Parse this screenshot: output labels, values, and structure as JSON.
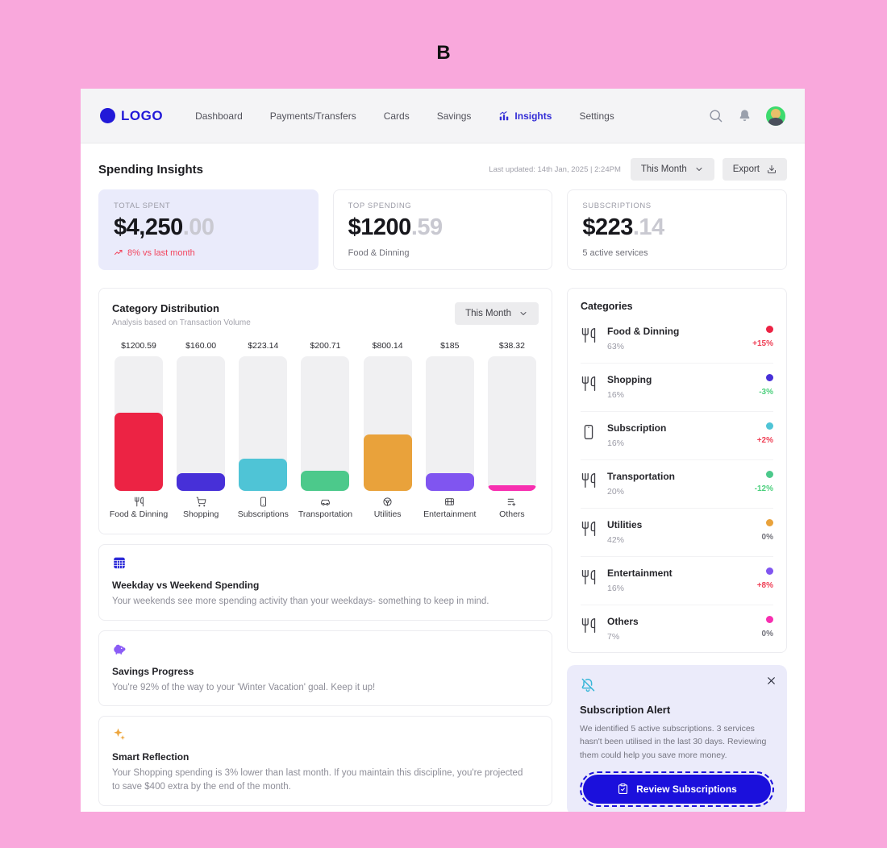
{
  "page": {
    "watermark": "B"
  },
  "navbar": {
    "logo_text": "LOGO",
    "items": [
      {
        "label": "Dashboard"
      },
      {
        "label": "Payments/Transfers"
      },
      {
        "label": "Cards"
      },
      {
        "label": "Savings"
      },
      {
        "label": "Insights",
        "active": true
      },
      {
        "label": "Settings"
      }
    ]
  },
  "header": {
    "title": "Spending Insights",
    "last_updated": "Last updated: 14th Jan, 2025 | 2:24PM",
    "period": "This Month",
    "export_label": "Export"
  },
  "stats": [
    {
      "label": "TOTAL SPENT",
      "amount": "$4,250",
      "cents": ".00",
      "note": "8% vs last month"
    },
    {
      "label": "TOP SPENDING",
      "amount": "$1200",
      "cents": ".59",
      "note": "Food & Dinning"
    },
    {
      "label": "SUBSCRIPTIONS",
      "amount": "$223",
      "cents": ".14",
      "note": "5 active services"
    }
  ],
  "chart": {
    "title": "Category Distribution",
    "subtitle": "Analysis based on Transaction Volume",
    "period": "This Month",
    "chart_data": {
      "type": "bar",
      "categories": [
        "Food & Dinning",
        "Shopping",
        "Subscriptions",
        "Transportation",
        "Utilities",
        "Entertainment",
        "Others"
      ],
      "values": [
        1200.59,
        160.0,
        223.14,
        200.71,
        800.14,
        185,
        38.32
      ],
      "value_labels": [
        "$1200.59",
        "$160.00",
        "$223.14",
        "$200.71",
        "$800.14",
        "$185",
        "$38.32"
      ],
      "colors": [
        "#ec2344",
        "#4730d8",
        "#4fc4d6",
        "#4cc98b",
        "#e9a23b",
        "#8055f0",
        "#f72fb0"
      ],
      "fill_percent": [
        58,
        13,
        24,
        15,
        42,
        13,
        4
      ]
    }
  },
  "insights": [
    {
      "icon": "calendar-icon",
      "title": "Weekday vs Weekend Spending",
      "text": "Your weekends see more spending activity than your weekdays- something to keep in mind."
    },
    {
      "icon": "piggy-bank-icon",
      "title": "Savings Progress",
      "text": "You're 92% of the way to your 'Winter Vacation' goal. Keep it up!"
    },
    {
      "icon": "sparkles-icon",
      "title": "Smart Reflection",
      "text": "Your Shopping spending is 3% lower than last month. If you maintain this discipline, you're projected to save $400 extra by the end of the month."
    }
  ],
  "categories_panel": {
    "title": "Categories",
    "items": [
      {
        "name": "Food & Dinning",
        "percent": "63%",
        "change": "+15%",
        "dot_color": "#ec2344",
        "change_color": "#ef4056",
        "icon": "utensils-icon"
      },
      {
        "name": "Shopping",
        "percent": "16%",
        "change": "-3%",
        "dot_color": "#4730d8",
        "change_color": "#4cd07d",
        "icon": "utensils-icon"
      },
      {
        "name": "Subscription",
        "percent": "16%",
        "change": "+2%",
        "dot_color": "#4fc4d6",
        "change_color": "#ef4056",
        "icon": "smartphone-icon"
      },
      {
        "name": "Transportation",
        "percent": "20%",
        "change": "-12%",
        "dot_color": "#4cc98b",
        "change_color": "#4cd07d",
        "icon": "utensils-icon"
      },
      {
        "name": "Utilities",
        "percent": "42%",
        "change": "0%",
        "dot_color": "#e9a23b",
        "change_color": "#71717a",
        "icon": "utensils-icon"
      },
      {
        "name": "Entertainment",
        "percent": "16%",
        "change": "+8%",
        "dot_color": "#8055f0",
        "change_color": "#ef4056",
        "icon": "utensils-icon"
      },
      {
        "name": "Others",
        "percent": "7%",
        "change": "0%",
        "dot_color": "#f72fb0",
        "change_color": "#71717a",
        "icon": "utensils-icon"
      }
    ]
  },
  "alert": {
    "title": "Subscription Alert",
    "body": "We identified 5 active subscriptions. 3 services hasn't been utilised in the last 30 days. Reviewing them could help you save more money.",
    "button_label": "Review Subscriptions"
  }
}
